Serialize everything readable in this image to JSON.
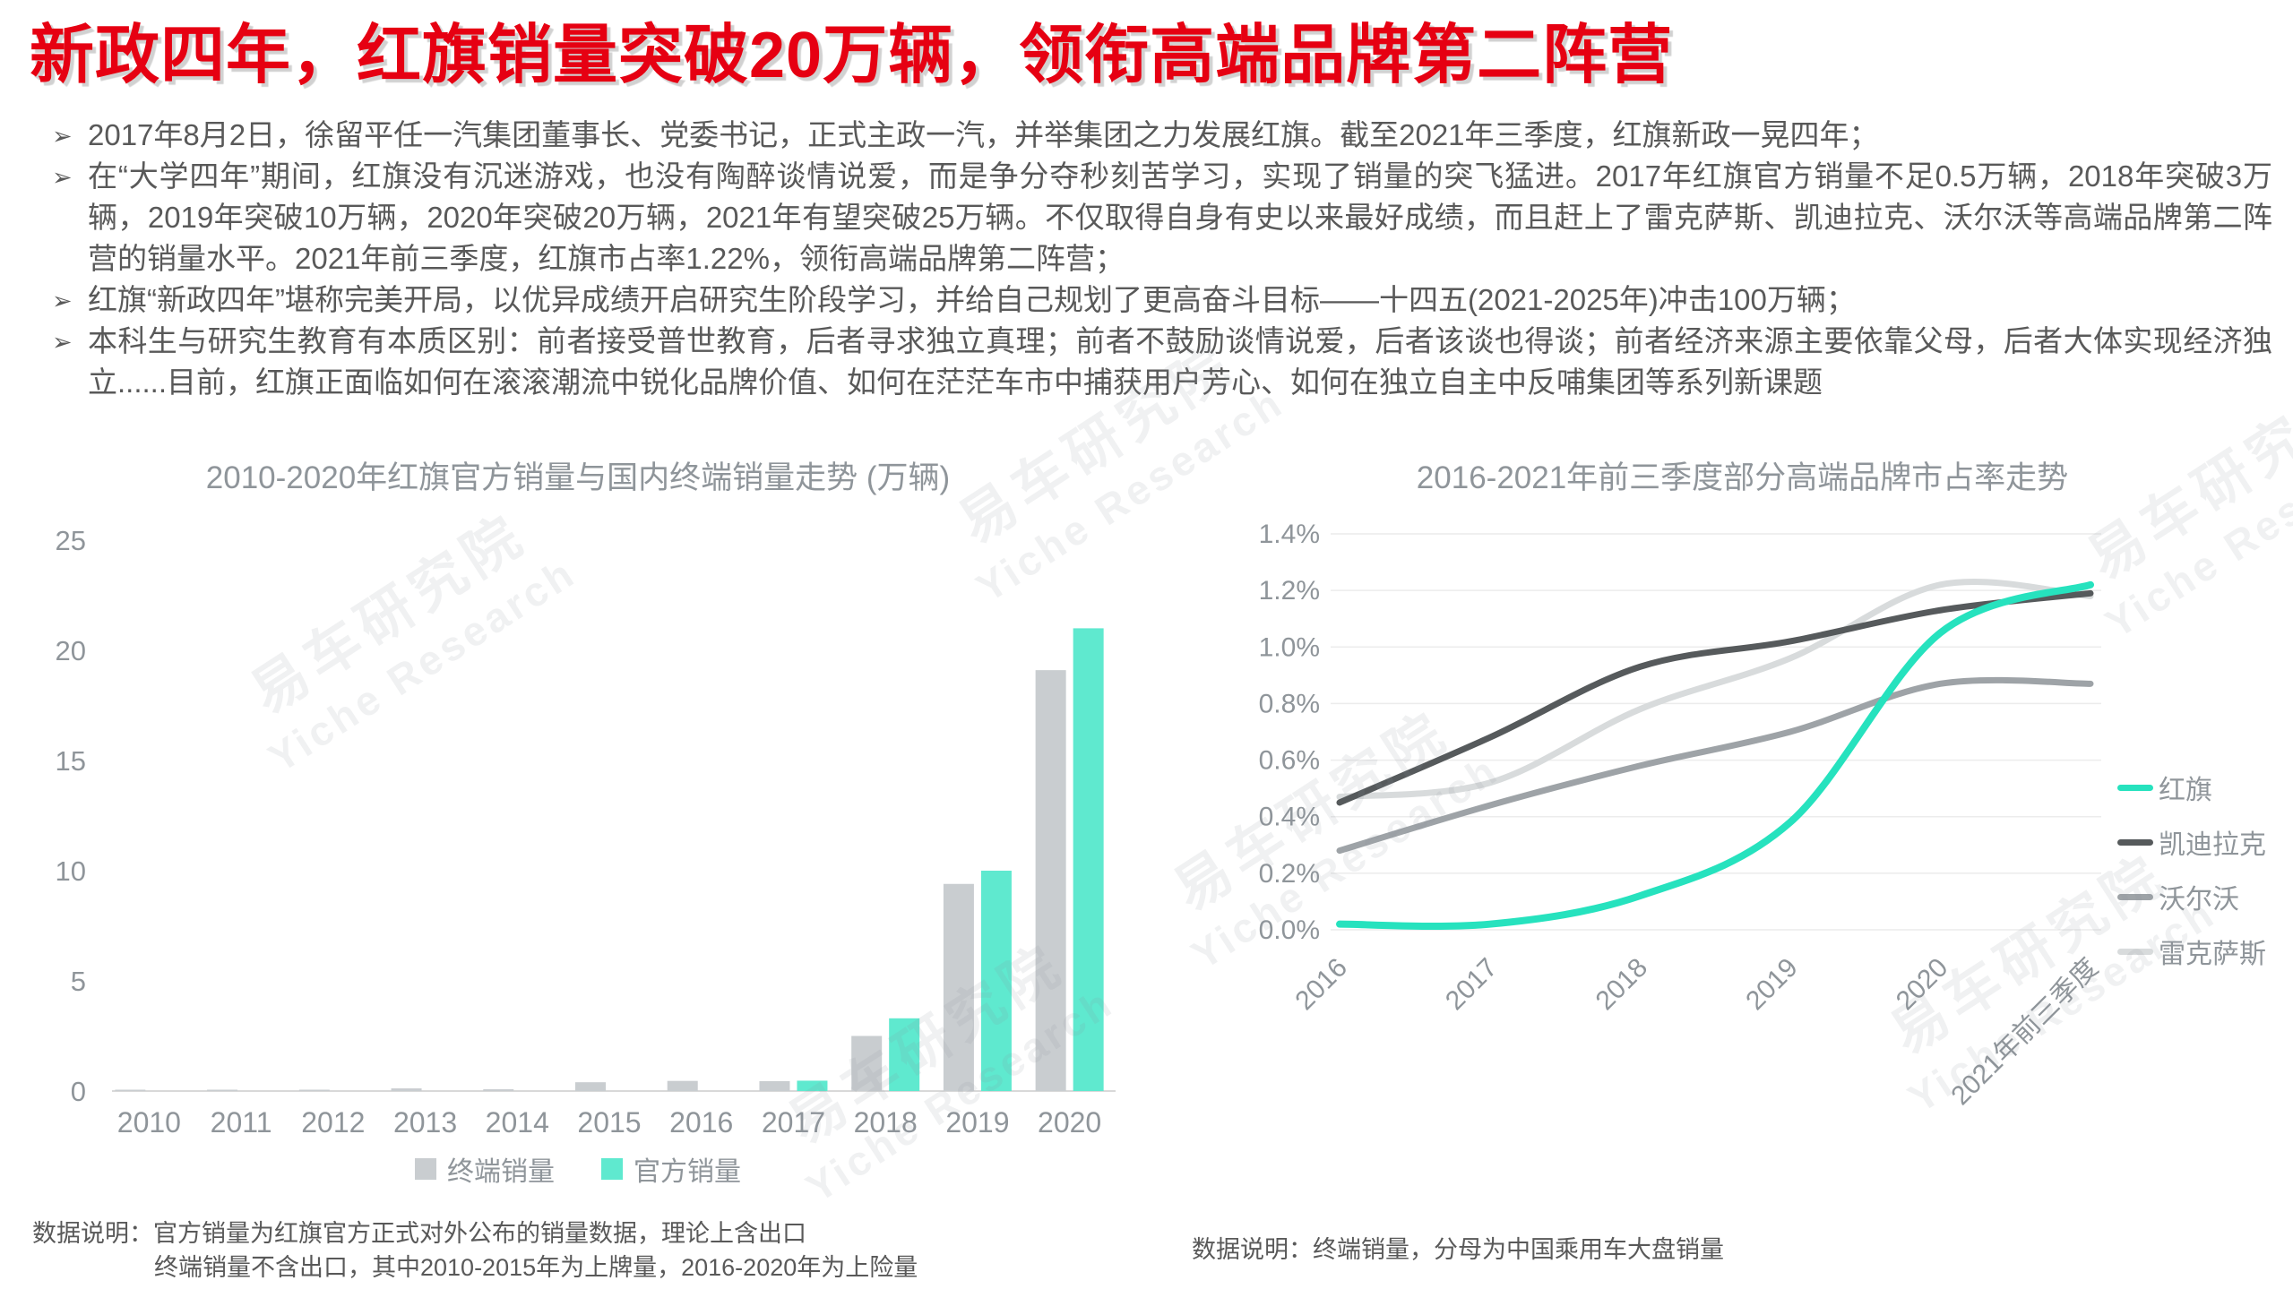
{
  "title": "新政四年，红旗销量突破20万辆，领衔高端品牌第二阵营",
  "bullets": [
    {
      "text": "2017年8月2日，徐留平任一汽集团董事长、党委书记，正式主政一汽，并举集团之力发展红旗。截至2021年三季度，红旗新政一晃四年；"
    },
    {
      "text": "在“大学四年”期间，红旗没有沉迷游戏，也没有陶醉谈情说爱，而是争分夺秒刻苦学习，实现了销量的突飞猛进。2017年红旗官方销量不足0.5万辆，2018年突破3万辆，2019年突破10万辆，2020年突破20万辆，2021年有望突破25万辆。不仅取得自身有史以来最好成绩，而且赶上了雷克萨斯、凯迪拉克、沃尔沃等高端品牌第二阵营的销量水平。2021年前三季度，红旗市占率1.22%，领衔高端品牌第二阵营；"
    },
    {
      "text": "红旗“新政四年”堪称完美开局，以优异成绩开启研究生阶段学习，并给自己规划了更高奋斗目标——十四五(2021-2025年)冲击100万辆；"
    },
    {
      "text": "本科生与研究生教育有本质区别：前者接受普世教育，后者寻求独立真理；前者不鼓励谈情说爱，后者该谈也得谈；前者经济来源主要依靠父母，后者大体实现经济独立......目前，红旗正面临如何在滚滚潮流中锐化品牌价值、如何在茫茫车市中捕获用户芳心、如何在独立自主中反哺集团等系列新课题"
    }
  ],
  "chart_data": [
    {
      "type": "bar",
      "title": "2010-2020年红旗官方销量与国内终端销量走势 (万辆)",
      "categories": [
        "2010",
        "2011",
        "2012",
        "2013",
        "2014",
        "2015",
        "2016",
        "2017",
        "2018",
        "2019",
        "2020"
      ],
      "series": [
        {
          "id": "terminal",
          "name": "终端销量",
          "color": "#C9CDD0",
          "values": [
            0.03,
            0.02,
            0.03,
            0.12,
            0.08,
            0.4,
            0.46,
            0.45,
            2.5,
            9.4,
            19.1
          ]
        },
        {
          "id": "official",
          "name": "官方销量",
          "color": "#5FE9CF",
          "values": [
            null,
            null,
            null,
            null,
            null,
            null,
            null,
            0.47,
            3.3,
            10,
            21
          ]
        }
      ],
      "ylim": [
        0,
        25
      ],
      "ytick_labels": [
        "0",
        "5",
        "10",
        "15",
        "20",
        "25"
      ],
      "grid": false,
      "legend_position": "bottom"
    },
    {
      "type": "line",
      "title": "2016-2021年前三季度部分高端品牌市占率走势",
      "x": [
        "2016",
        "2017",
        "2018",
        "2019",
        "2020",
        "2021年前三季度"
      ],
      "series": [
        {
          "id": "hongqi",
          "name": "红旗",
          "color": "#26E2BE",
          "values": [
            0.02,
            0.02,
            0.12,
            0.38,
            1.05,
            1.22
          ]
        },
        {
          "id": "cadillac",
          "name": "凯迪拉克",
          "color": "#565A5C",
          "values": [
            0.45,
            0.68,
            0.93,
            1.02,
            1.13,
            1.19
          ]
        },
        {
          "id": "volvo",
          "name": "沃尔沃",
          "color": "#9EA3A7",
          "values": [
            0.28,
            0.44,
            0.58,
            0.7,
            0.87,
            0.87
          ]
        },
        {
          "id": "lexus",
          "name": "雷克萨斯",
          "color": "#D8DBDC",
          "values": [
            0.47,
            0.52,
            0.78,
            0.96,
            1.22,
            1.18
          ]
        }
      ],
      "ylim": [
        0,
        1.4
      ],
      "ytick_labels": [
        "0.0%",
        "0.2%",
        "0.4%",
        "0.6%",
        "0.8%",
        "1.0%",
        "1.2%",
        "1.4%"
      ],
      "grid": true,
      "legend_position": "right"
    }
  ],
  "notes": {
    "left": {
      "line1": "数据说明：官方销量为红旗官方正式对外公布的销量数据，理论上含出口",
      "line2": "终端销量不含出口，其中2010-2015年为上牌量，2016-2020年为上险量"
    },
    "right": "数据说明：终端销量，分母为中国乘用车大盘销量"
  },
  "watermark": {
    "line1": "易车研究院",
    "line2": "Yiche Research"
  },
  "colors": {
    "title": "#E60012",
    "body_text": "#595959",
    "axis_text": "#8F959A",
    "baseline": "#D9D9D9",
    "gridline": "#ECECEC"
  }
}
